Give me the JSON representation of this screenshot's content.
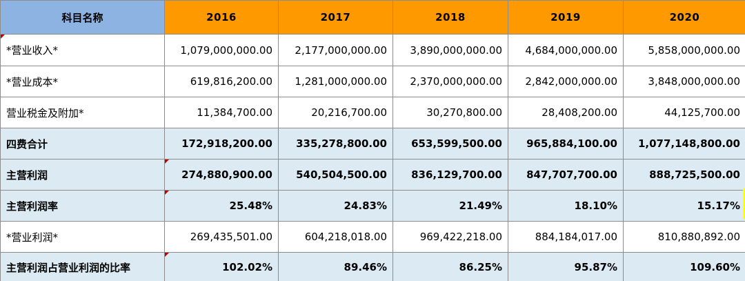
{
  "header": {
    "name": "科目名称",
    "years": [
      "2016",
      "2017",
      "2018",
      "2019",
      "2020"
    ]
  },
  "rows": [
    {
      "label": "*营业收入*",
      "values": [
        "1,079,000,000.00",
        "2,177,000,000.00",
        "3,890,000,000.00",
        "4,684,000,000.00",
        "5,858,000,000.00"
      ]
    },
    {
      "label": "*营业成本*",
      "values": [
        "619,816,200.00",
        "1,281,000,000.00",
        "2,370,000,000.00",
        "2,842,000,000.00",
        "3,848,000,000.00"
      ]
    },
    {
      "label": "营业税金及附加*",
      "values": [
        "11,384,700.00",
        "20,216,700.00",
        "30,270,800.00",
        "28,408,200.00",
        "44,125,700.00"
      ]
    },
    {
      "label": "四费合计",
      "values": [
        "172,918,200.00",
        "335,278,800.00",
        "653,599,500.00",
        "965,884,100.00",
        "1,077,148,800.00"
      ]
    },
    {
      "label": "主营利润",
      "values": [
        "274,880,900.00",
        "540,504,500.00",
        "836,129,700.00",
        "847,707,700.00",
        "888,725,500.00"
      ]
    },
    {
      "label": "主营利润率",
      "values": [
        "25.48%",
        "24.83%",
        "21.49%",
        "18.10%",
        "15.17%"
      ]
    },
    {
      "label": "*营业利润*",
      "values": [
        "269,435,501.00",
        "604,218,018.00",
        "969,422,218.00",
        "884,184,017.00",
        "810,880,892.00"
      ]
    },
    {
      "label": "主营利润占营业利润的比率",
      "values": [
        "102.02%",
        "89.46%",
        "86.25%",
        "95.87%",
        "109.60%"
      ]
    }
  ],
  "colors": {
    "header_name_bg": "#8db3e2",
    "header_year_bg": "#ff9900",
    "bold_row_bg": "#dcebf3",
    "comment_marker": "#c00000"
  }
}
